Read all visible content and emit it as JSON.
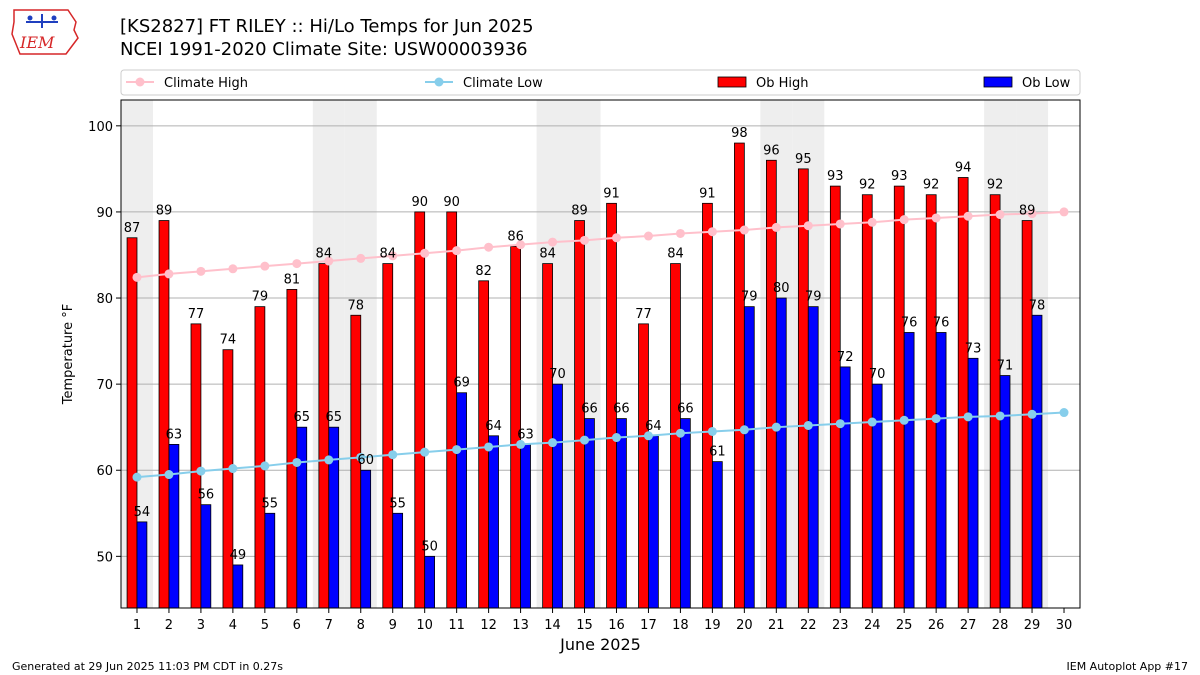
{
  "title_line1": "[KS2827] FT RILEY :: Hi/Lo Temps for Jun 2025",
  "title_line2": "NCEI 1991-2020 Climate Site: USW00003936",
  "logo_text": "IEM",
  "footer_left": "Generated at 29 Jun 2025 11:03 PM CDT in 0.27s",
  "footer_right": "IEM Autoplot App #17",
  "colors": {
    "ob_high": "#ff0000",
    "ob_low": "#0000ff",
    "climate_high": "#ffc0cb",
    "climate_low": "#87ceeb",
    "weekend_band": "#eeeeee",
    "grid": "#b0b0b0"
  },
  "chart_data": {
    "type": "bar",
    "xlabel": "June 2025",
    "ylabel": "Temperature °F",
    "ylim": [
      44,
      103
    ],
    "yticks": [
      50,
      60,
      70,
      80,
      90,
      100
    ],
    "xlim": [
      0.5,
      30.5
    ],
    "grid": "y",
    "legend_position": "top",
    "categories": [
      "1",
      "2",
      "3",
      "4",
      "5",
      "6",
      "7",
      "8",
      "9",
      "10",
      "11",
      "12",
      "13",
      "14",
      "15",
      "16",
      "17",
      "18",
      "19",
      "20",
      "21",
      "22",
      "23",
      "24",
      "25",
      "26",
      "27",
      "28",
      "29",
      "30"
    ],
    "weekend_days": [
      1,
      7,
      8,
      14,
      15,
      21,
      22,
      28,
      29
    ],
    "series": [
      {
        "name": "Climate High",
        "kind": "line",
        "values": [
          82.4,
          82.8,
          83.1,
          83.4,
          83.7,
          84.0,
          84.3,
          84.6,
          84.9,
          85.2,
          85.5,
          85.9,
          86.2,
          86.5,
          86.7,
          87.0,
          87.2,
          87.5,
          87.7,
          87.9,
          88.2,
          88.4,
          88.6,
          88.8,
          89.1,
          89.3,
          89.5,
          89.7,
          89.8,
          90.0
        ]
      },
      {
        "name": "Climate Low",
        "kind": "line",
        "values": [
          59.2,
          59.5,
          59.9,
          60.2,
          60.5,
          60.9,
          61.2,
          61.5,
          61.8,
          62.1,
          62.4,
          62.7,
          63.0,
          63.2,
          63.5,
          63.8,
          64.0,
          64.3,
          64.5,
          64.7,
          65.0,
          65.2,
          65.4,
          65.6,
          65.8,
          66.0,
          66.2,
          66.3,
          66.5,
          66.7
        ]
      },
      {
        "name": "Ob High",
        "kind": "bar",
        "values": [
          87,
          89,
          77,
          74,
          79,
          81,
          84,
          78,
          84,
          90,
          90,
          82,
          86,
          84,
          89,
          91,
          77,
          84,
          91,
          98,
          96,
          95,
          93,
          92,
          93,
          92,
          94,
          92,
          89,
          null
        ]
      },
      {
        "name": "Ob Low",
        "kind": "bar",
        "values": [
          54,
          63,
          56,
          49,
          55,
          65,
          65,
          60,
          55,
          50,
          69,
          64,
          63,
          70,
          66,
          66,
          64,
          66,
          61,
          79,
          80,
          79,
          72,
          70,
          76,
          76,
          73,
          71,
          78,
          null
        ]
      }
    ]
  }
}
